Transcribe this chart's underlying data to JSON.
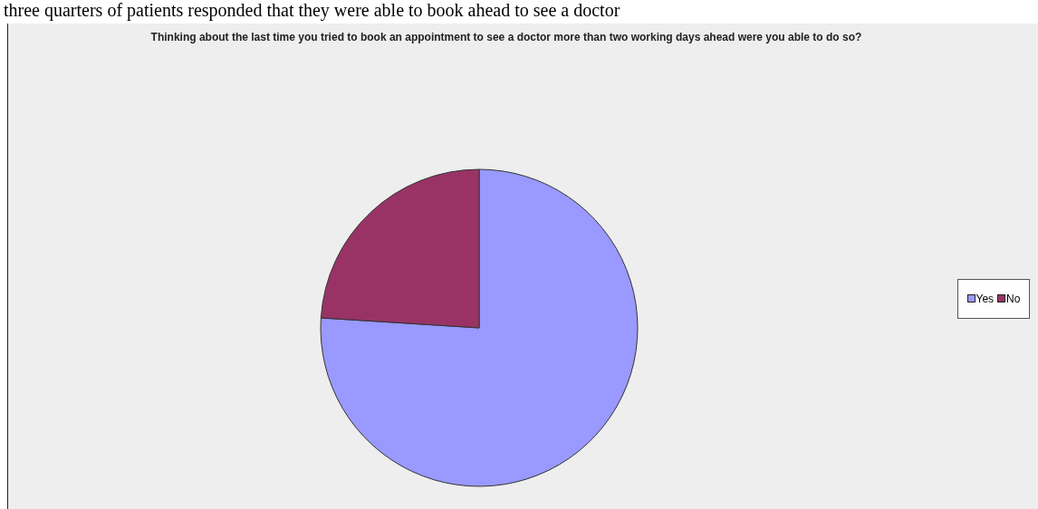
{
  "chart_data": {
    "type": "pie",
    "title": "Thinking about the last time you tried to book an appointment to see a doctor more than two working days ahead were you able to do so?",
    "categories": [
      "Yes",
      "No"
    ],
    "values": [
      76,
      24
    ],
    "colors": [
      "#9999ff",
      "#993366"
    ],
    "legend": "right",
    "annotations": [
      "three quarters of patients responded that they were able to book ahead to see a doctor"
    ]
  }
}
